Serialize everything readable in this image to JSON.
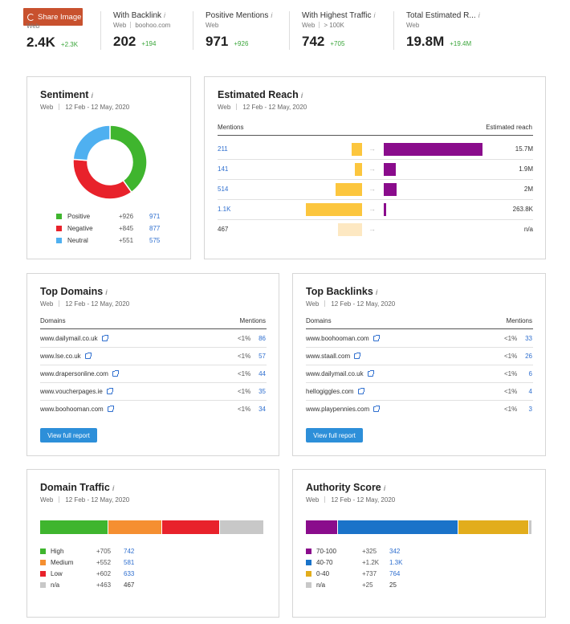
{
  "share": {
    "label": "Share Image"
  },
  "metrics": [
    {
      "title": "",
      "sub1": "Web",
      "sub2": "",
      "value": "2.4K",
      "delta": "+2.3K"
    },
    {
      "title": "With Backlink",
      "sub1": "Web",
      "sub2": "boohoo.com",
      "value": "202",
      "delta": "+194"
    },
    {
      "title": "Positive Mentions",
      "sub1": "Web",
      "sub2": "",
      "value": "971",
      "delta": "+926"
    },
    {
      "title": "With Highest Traffic",
      "sub1": "Web",
      "sub2": "> 100K",
      "value": "742",
      "delta": "+705"
    },
    {
      "title": "Total Estimated R...",
      "sub1": "Web",
      "sub2": "",
      "value": "19.8M",
      "delta": "+19.4M"
    }
  ],
  "info_glyph": "i",
  "sentiment": {
    "title": "Sentiment",
    "scope": "Web",
    "date": "12 Feb - 12 May, 2020",
    "colors": {
      "positive": "#3fb52e",
      "negative": "#e8222b",
      "neutral": "#4fb0f0"
    },
    "legend": [
      {
        "label": "Positive",
        "delta": "+926",
        "value": "971",
        "count": 971,
        "color": "#3fb52e"
      },
      {
        "label": "Negative",
        "delta": "+845",
        "value": "877",
        "count": 877,
        "color": "#e8222b"
      },
      {
        "label": "Neutral",
        "delta": "+551",
        "value": "575",
        "count": 575,
        "color": "#4fb0f0"
      }
    ]
  },
  "reach": {
    "title": "Estimated Reach",
    "scope": "Web",
    "date": "12 Feb - 12 May, 2020",
    "col_mentions": "Mentions",
    "col_reach": "Estimated reach",
    "arrow": "→",
    "rows": [
      {
        "mentions": "211",
        "reach": "15.7M",
        "m": 211,
        "r": 15.7,
        "active": true
      },
      {
        "mentions": "141",
        "reach": "1.9M",
        "m": 141,
        "r": 1.9,
        "active": true
      },
      {
        "mentions": "514",
        "reach": "2M",
        "m": 514,
        "r": 2.0,
        "active": true
      },
      {
        "mentions": "1.1K",
        "reach": "263.8K",
        "m": 1100,
        "r": 0.2638,
        "active": true
      },
      {
        "mentions": "467",
        "reach": "n/a",
        "m": 467,
        "r": 0,
        "active": false
      }
    ]
  },
  "top_domains": {
    "title": "Top Domains",
    "scope": "Web",
    "date": "12 Feb - 12 May, 2020",
    "col_left": "Domains",
    "col_right": "Mentions",
    "rows": [
      {
        "name": "www.dailymail.co.uk",
        "pct": "<1%",
        "count": "86"
      },
      {
        "name": "www.lse.co.uk",
        "pct": "<1%",
        "count": "57"
      },
      {
        "name": "www.drapersonline.com",
        "pct": "<1%",
        "count": "44"
      },
      {
        "name": "www.voucherpages.ie",
        "pct": "<1%",
        "count": "35"
      },
      {
        "name": "www.boohooman.com",
        "pct": "<1%",
        "count": "34"
      }
    ],
    "button": "View full report"
  },
  "top_backlinks": {
    "title": "Top Backlinks",
    "scope": "Web",
    "date": "12 Feb - 12 May, 2020",
    "col_left": "Domains",
    "col_right": "Mentions",
    "rows": [
      {
        "name": "www.boohooman.com",
        "pct": "<1%",
        "count": "33"
      },
      {
        "name": "www.staall.com",
        "pct": "<1%",
        "count": "26"
      },
      {
        "name": "www.dailymail.co.uk",
        "pct": "<1%",
        "count": "6"
      },
      {
        "name": "hellogiggles.com",
        "pct": "<1%",
        "count": "4"
      },
      {
        "name": "www.playpennies.com",
        "pct": "<1%",
        "count": "3"
      }
    ],
    "button": "View full report"
  },
  "domain_traffic": {
    "title": "Domain Traffic",
    "scope": "Web",
    "date": "12 Feb - 12 May, 2020",
    "legend": [
      {
        "label": "High",
        "delta": "+705",
        "value": "742",
        "count": 742,
        "color": "#3fb52e"
      },
      {
        "label": "Medium",
        "delta": "+552",
        "value": "581",
        "count": 581,
        "color": "#f58f31"
      },
      {
        "label": "Low",
        "delta": "+602",
        "value": "633",
        "count": 633,
        "color": "#e8222b"
      },
      {
        "label": "n/a",
        "delta": "+463",
        "value": "467",
        "count": 467,
        "color": "#c8c8c8"
      }
    ]
  },
  "authority": {
    "title": "Authority Score",
    "scope": "Web",
    "date": "12 Feb - 12 May, 2020",
    "legend": [
      {
        "label": "70-100",
        "delta": "+325",
        "value": "342",
        "count": 342,
        "color": "#8a0c8c"
      },
      {
        "label": "40-70",
        "delta": "+1.2K",
        "value": "1.3K",
        "count": 1300,
        "color": "#1a73c9"
      },
      {
        "label": "0-40",
        "delta": "+737",
        "value": "764",
        "count": 764,
        "color": "#e2ad1c"
      },
      {
        "label": "n/a",
        "delta": "+25",
        "value": "25",
        "count": 25,
        "color": "#c8c8c8"
      }
    ]
  }
}
